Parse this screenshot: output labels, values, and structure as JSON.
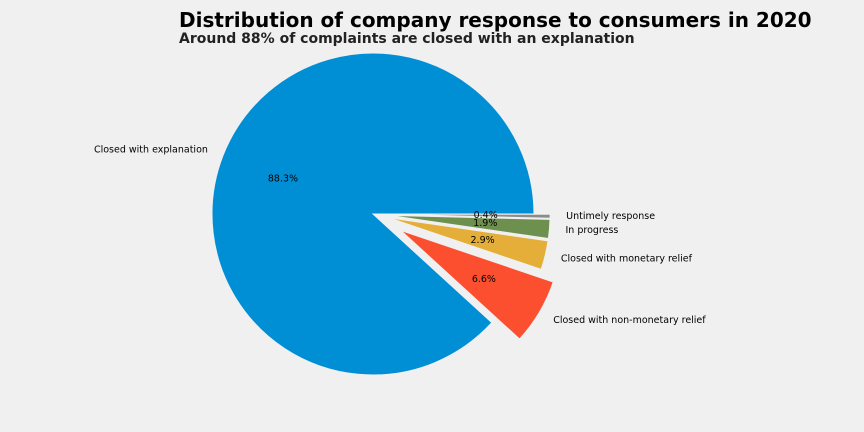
{
  "chart_data": {
    "type": "pie",
    "title": "Distribution of company response to consumers in 2020",
    "subtitle": "Around 88% of complaints are closed with an explanation",
    "start_angle_deg": 0,
    "direction": "counterclockwise",
    "slices": [
      {
        "label": "Closed with explanation",
        "value": 88.3,
        "pct_label": "88.3%",
        "color": "#008fd5",
        "explode": 0
      },
      {
        "label": "Closed with non-monetary relief",
        "value": 6.6,
        "pct_label": "6.6%",
        "color": "#fc4f30",
        "explode": 0.2
      },
      {
        "label": "Closed with monetary relief",
        "value": 2.9,
        "pct_label": "2.9%",
        "color": "#e5ae38",
        "explode": 0.1
      },
      {
        "label": "In progress",
        "value": 1.9,
        "pct_label": "1.9%",
        "color": "#6d904f",
        "explode": 0.1
      },
      {
        "label": "Untimely response",
        "value": 0.4,
        "pct_label": "0.4%",
        "color": "#8b8b8b",
        "explode": 0.1
      }
    ]
  }
}
